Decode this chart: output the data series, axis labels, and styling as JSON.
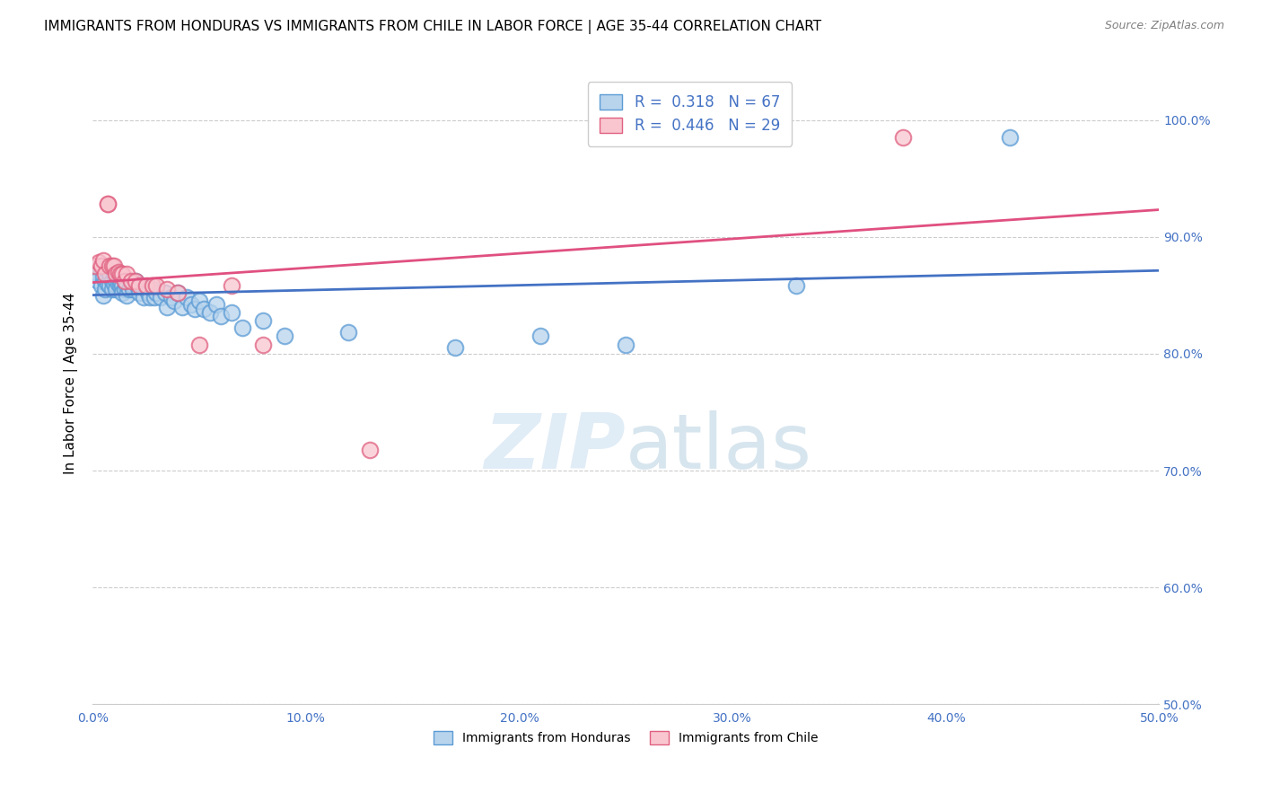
{
  "title": "IMMIGRANTS FROM HONDURAS VS IMMIGRANTS FROM CHILE IN LABOR FORCE | AGE 35-44 CORRELATION CHART",
  "source": "Source: ZipAtlas.com",
  "ylabel": "In Labor Force | Age 35-44",
  "xlim": [
    0.0,
    0.5
  ],
  "ylim": [
    0.5,
    1.05
  ],
  "xticks": [
    0.0,
    0.1,
    0.2,
    0.3,
    0.4,
    0.5
  ],
  "yticks": [
    0.5,
    0.6,
    0.7,
    0.8,
    0.9,
    1.0
  ],
  "r_honduras": 0.318,
  "n_honduras": 67,
  "r_chile": 0.446,
  "n_chile": 29,
  "color_honduras_fill": "#b8d4ed",
  "color_honduras_edge": "#5b9bd5",
  "color_chile_fill": "#f9c6d0",
  "color_chile_edge": "#e06080",
  "line_color_honduras": "#4472c4",
  "line_color_chile": "#e05080",
  "line_color_diagonal": "#a8c8e0",
  "title_fontsize": 11,
  "axis_label_fontsize": 11,
  "tick_fontsize": 10,
  "honduras_x": [
    0.001,
    0.002,
    0.003,
    0.004,
    0.005,
    0.005,
    0.006,
    0.006,
    0.007,
    0.007,
    0.008,
    0.008,
    0.009,
    0.009,
    0.01,
    0.01,
    0.011,
    0.011,
    0.012,
    0.012,
    0.013,
    0.013,
    0.014,
    0.014,
    0.015,
    0.015,
    0.016,
    0.016,
    0.017,
    0.018,
    0.019,
    0.02,
    0.021,
    0.022,
    0.023,
    0.024,
    0.025,
    0.026,
    0.027,
    0.028,
    0.029,
    0.03,
    0.032,
    0.034,
    0.035,
    0.037,
    0.038,
    0.04,
    0.042,
    0.044,
    0.046,
    0.048,
    0.05,
    0.052,
    0.055,
    0.058,
    0.06,
    0.065,
    0.07,
    0.08,
    0.09,
    0.12,
    0.17,
    0.21,
    0.25,
    0.33,
    0.43
  ],
  "honduras_y": [
    0.87,
    0.863,
    0.875,
    0.858,
    0.866,
    0.85,
    0.862,
    0.855,
    0.86,
    0.872,
    0.868,
    0.858,
    0.862,
    0.855,
    0.868,
    0.86,
    0.862,
    0.855,
    0.86,
    0.866,
    0.858,
    0.862,
    0.858,
    0.852,
    0.862,
    0.855,
    0.858,
    0.85,
    0.855,
    0.86,
    0.855,
    0.862,
    0.858,
    0.852,
    0.858,
    0.848,
    0.855,
    0.852,
    0.848,
    0.855,
    0.848,
    0.852,
    0.848,
    0.852,
    0.84,
    0.848,
    0.845,
    0.852,
    0.84,
    0.848,
    0.842,
    0.838,
    0.845,
    0.838,
    0.835,
    0.842,
    0.832,
    0.835,
    0.822,
    0.828,
    0.815,
    0.818,
    0.805,
    0.815,
    0.808,
    0.858,
    0.985
  ],
  "chile_x": [
    0.001,
    0.003,
    0.004,
    0.005,
    0.006,
    0.007,
    0.007,
    0.008,
    0.009,
    0.01,
    0.011,
    0.012,
    0.013,
    0.014,
    0.015,
    0.016,
    0.018,
    0.02,
    0.022,
    0.025,
    0.028,
    0.03,
    0.035,
    0.04,
    0.05,
    0.065,
    0.08,
    0.13,
    0.38
  ],
  "chile_y": [
    0.875,
    0.878,
    0.875,
    0.88,
    0.868,
    0.928,
    0.928,
    0.875,
    0.875,
    0.875,
    0.868,
    0.87,
    0.868,
    0.868,
    0.862,
    0.868,
    0.862,
    0.862,
    0.858,
    0.858,
    0.858,
    0.858,
    0.855,
    0.852,
    0.808,
    0.858,
    0.808,
    0.718,
    0.985
  ]
}
